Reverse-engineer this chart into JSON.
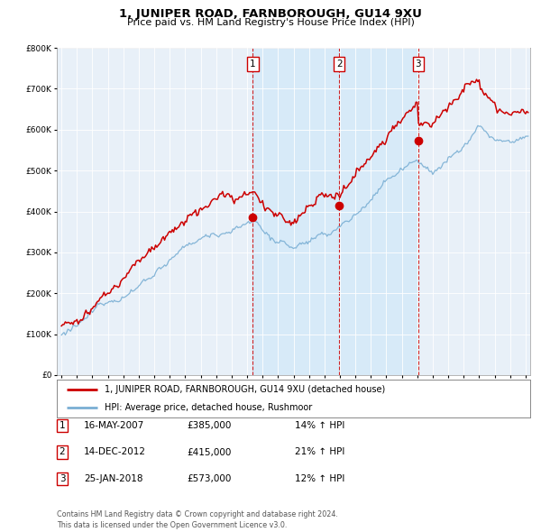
{
  "title": "1, JUNIPER ROAD, FARNBOROUGH, GU14 9XU",
  "subtitle": "Price paid vs. HM Land Registry's House Price Index (HPI)",
  "legend_line1": "1, JUNIPER ROAD, FARNBOROUGH, GU14 9XU (detached house)",
  "legend_line2": "HPI: Average price, detached house, Rushmoor",
  "transactions": [
    {
      "num": 1,
      "date": "16-MAY-2007",
      "price": "£385,000",
      "pct": "14% ↑ HPI",
      "year": 2007.37,
      "sale_price": 385000
    },
    {
      "num": 2,
      "date": "14-DEC-2012",
      "price": "£415,000",
      "pct": "21% ↑ HPI",
      "year": 2012.95,
      "sale_price": 415000
    },
    {
      "num": 3,
      "date": "25-JAN-2018",
      "price": "£573,000",
      "pct": "12% ↑ HPI",
      "year": 2018.07,
      "sale_price": 573000
    }
  ],
  "footer": "Contains HM Land Registry data © Crown copyright and database right 2024.\nThis data is licensed under the Open Government Licence v3.0.",
  "red_color": "#cc0000",
  "blue_color": "#7aafd4",
  "shade_color": "#d0e8f8",
  "bg_color": "#e8f0f8",
  "ylim": [
    0,
    800000
  ],
  "xlim_start": 1994.7,
  "xlim_end": 2025.3
}
